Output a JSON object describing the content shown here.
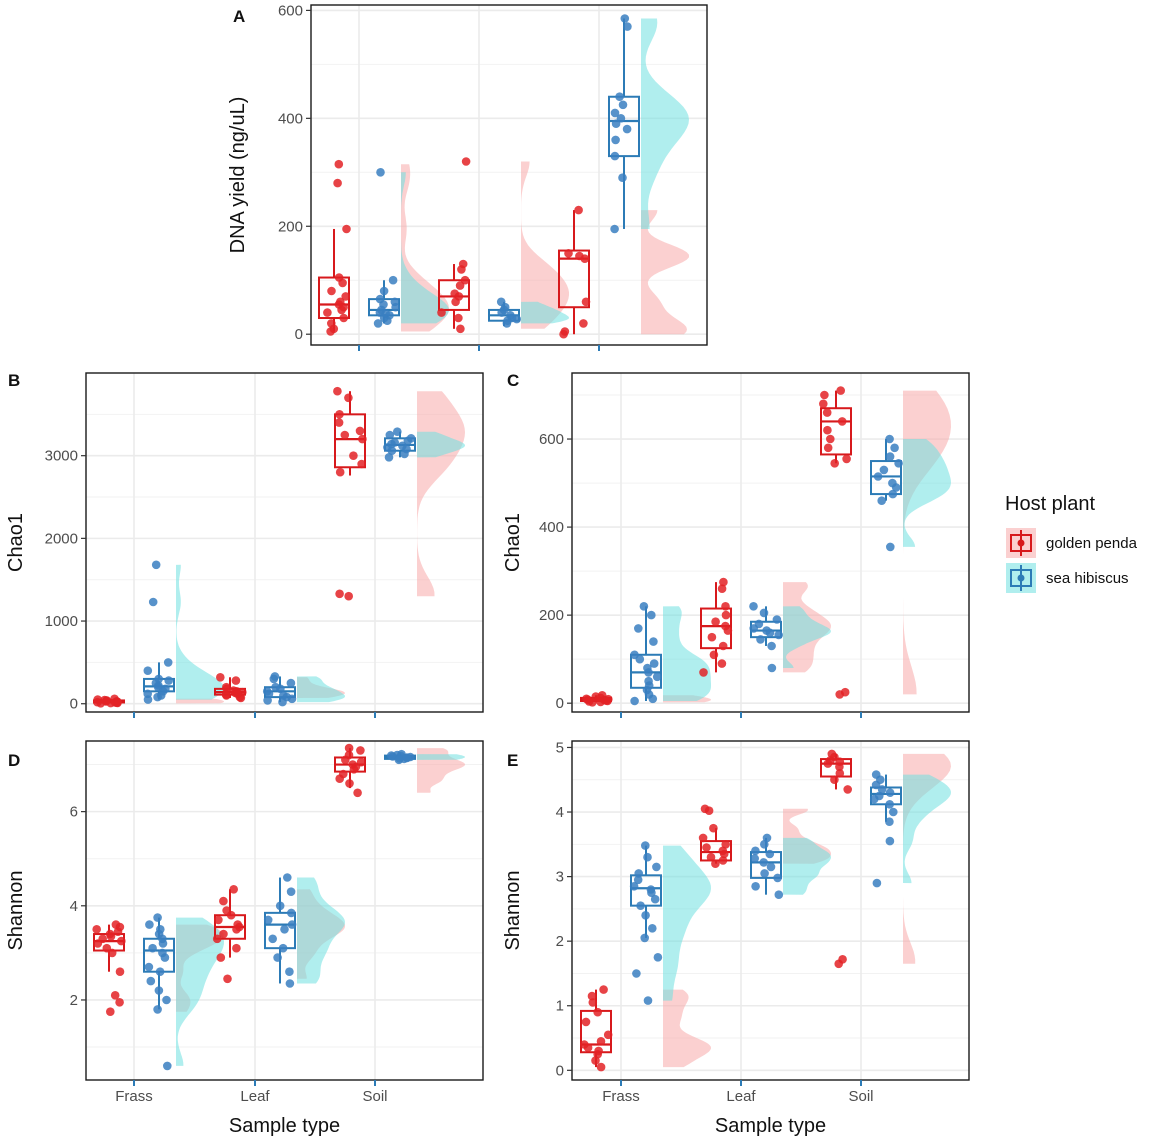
{
  "legend": {
    "title": "Host plant",
    "entries": [
      {
        "label": "golden penda",
        "color": "#d7191c",
        "fill": "#f8a9a9"
      },
      {
        "label": "sea hibiscus",
        "color": "#2c7bb6",
        "fill": "#6fe0e0"
      }
    ]
  },
  "chart_data": [
    {
      "panel": "A",
      "type": "box+jitter+half-violin",
      "ylabel": "DNA yield (ng/uL)",
      "xlabel": "",
      "categories": [
        "Frass",
        "Leaf",
        "Soil"
      ],
      "show_x_tick_labels": false,
      "ylim": [
        -20,
        610
      ],
      "yticks": [
        0,
        200,
        400,
        600
      ],
      "series": [
        {
          "name": "golden penda",
          "boxes": [
            {
              "category": "Frass",
              "min": 5,
              "q1": 30,
              "median": 55,
              "q3": 105,
              "max": 195,
              "points": [
                315,
                280,
                195,
                105,
                95,
                80,
                70,
                60,
                55,
                50,
                45,
                40,
                30,
                20,
                10,
                5
              ]
            },
            {
              "category": "Leaf",
              "min": 10,
              "q1": 45,
              "median": 70,
              "q3": 100,
              "max": 130,
              "points": [
                320,
                130,
                120,
                100,
                90,
                75,
                70,
                60,
                40,
                30,
                10
              ]
            },
            {
              "category": "Soil",
              "min": 0,
              "q1": 50,
              "median": 140,
              "q3": 155,
              "max": 230,
              "points": [
                230,
                150,
                145,
                140,
                60,
                20,
                5,
                0
              ]
            }
          ]
        },
        {
          "name": "sea hibiscus",
          "boxes": [
            {
              "category": "Frass",
              "min": 20,
              "q1": 35,
              "median": 45,
              "q3": 65,
              "max": 100,
              "points": [
                300,
                100,
                80,
                65,
                60,
                55,
                50,
                45,
                40,
                38,
                35,
                30,
                25,
                20
              ]
            },
            {
              "category": "Leaf",
              "min": 15,
              "q1": 25,
              "median": 35,
              "q3": 45,
              "max": 60,
              "points": [
                60,
                50,
                45,
                40,
                35,
                30,
                28,
                25,
                20
              ]
            },
            {
              "category": "Soil",
              "min": 195,
              "q1": 330,
              "median": 395,
              "q3": 440,
              "max": 585,
              "points": [
                585,
                570,
                440,
                425,
                410,
                400,
                390,
                380,
                360,
                330,
                290,
                195
              ]
            }
          ]
        }
      ]
    },
    {
      "panel": "B",
      "type": "box+jitter+half-violin",
      "ylabel": "Chao1",
      "xlabel": "",
      "categories": [
        "Frass",
        "Leaf",
        "Soil"
      ],
      "show_x_tick_labels": false,
      "ylim": [
        -100,
        4000
      ],
      "yticks": [
        0,
        1000,
        2000,
        3000
      ],
      "series": [
        {
          "name": "golden penda",
          "boxes": [
            {
              "category": "Frass",
              "min": 5,
              "q1": 15,
              "median": 25,
              "q3": 40,
              "max": 60,
              "points": [
                60,
                50,
                45,
                40,
                35,
                30,
                28,
                25,
                20,
                18,
                15,
                12,
                10,
                8,
                5
              ]
            },
            {
              "category": "Leaf",
              "min": 70,
              "q1": 110,
              "median": 140,
              "q3": 180,
              "max": 320,
              "points": [
                320,
                280,
                200,
                180,
                160,
                150,
                140,
                130,
                120,
                110,
                100,
                80,
                70
              ]
            },
            {
              "category": "Soil",
              "min": 2760,
              "q1": 2860,
              "median": 3200,
              "q3": 3500,
              "max": 3780,
              "points": [
                3780,
                3700,
                3500,
                3400,
                3300,
                3250,
                3200,
                3000,
                2900,
                2800,
                1330,
                1300
              ]
            }
          ]
        },
        {
          "name": "sea hibiscus",
          "boxes": [
            {
              "category": "Frass",
              "min": 50,
              "q1": 150,
              "median": 210,
              "q3": 300,
              "max": 500,
              "points": [
                1680,
                1230,
                500,
                400,
                300,
                280,
                250,
                220,
                200,
                180,
                150,
                120,
                100,
                80,
                50
              ]
            },
            {
              "category": "Leaf",
              "min": 20,
              "q1": 80,
              "median": 150,
              "q3": 200,
              "max": 330,
              "points": [
                330,
                300,
                250,
                200,
                180,
                150,
                120,
                100,
                80,
                60,
                40,
                20
              ]
            },
            {
              "category": "Soil",
              "min": 2980,
              "q1": 3060,
              "median": 3130,
              "q3": 3210,
              "max": 3290,
              "points": [
                3290,
                3250,
                3210,
                3180,
                3160,
                3140,
                3120,
                3100,
                3080,
                3060,
                3020,
                2980
              ]
            }
          ]
        }
      ]
    },
    {
      "panel": "C",
      "type": "box+jitter+half-violin",
      "ylabel": "Chao1",
      "xlabel": "",
      "categories": [
        "Frass",
        "Leaf",
        "Soil"
      ],
      "show_x_tick_labels": false,
      "ylim": [
        -20,
        750
      ],
      "yticks": [
        0,
        200,
        400,
        600
      ],
      "series": [
        {
          "name": "golden penda",
          "boxes": [
            {
              "category": "Frass",
              "min": 2,
              "q1": 5,
              "median": 8,
              "q3": 12,
              "max": 18,
              "points": [
                18,
                15,
                12,
                10,
                9,
                8,
                7,
                6,
                5,
                4,
                3,
                2
              ]
            },
            {
              "category": "Leaf",
              "min": 70,
              "q1": 125,
              "median": 175,
              "q3": 215,
              "max": 275,
              "points": [
                275,
                260,
                220,
                200,
                185,
                175,
                165,
                150,
                130,
                110,
                90,
                70
              ]
            },
            {
              "category": "Soil",
              "min": 545,
              "q1": 565,
              "median": 640,
              "q3": 670,
              "max": 710,
              "points": [
                710,
                700,
                680,
                660,
                640,
                620,
                600,
                580,
                555,
                545,
                25,
                20
              ]
            }
          ]
        },
        {
          "name": "sea hibiscus",
          "boxes": [
            {
              "category": "Frass",
              "min": 5,
              "q1": 35,
              "median": 70,
              "q3": 110,
              "max": 220,
              "points": [
                220,
                200,
                170,
                140,
                110,
                100,
                90,
                80,
                70,
                60,
                50,
                40,
                30,
                20,
                10,
                5
              ]
            },
            {
              "category": "Leaf",
              "min": 130,
              "q1": 150,
              "median": 165,
              "q3": 185,
              "max": 220,
              "points": [
                220,
                205,
                190,
                180,
                170,
                165,
                160,
                155,
                145,
                130,
                80
              ]
            },
            {
              "category": "Soil",
              "min": 460,
              "q1": 475,
              "median": 515,
              "q3": 550,
              "max": 600,
              "points": [
                600,
                580,
                560,
                545,
                530,
                515,
                500,
                490,
                475,
                460,
                355
              ]
            }
          ]
        }
      ]
    },
    {
      "panel": "D",
      "type": "box+jitter+half-violin",
      "ylabel": "Shannon",
      "xlabel": "Sample type",
      "categories": [
        "Frass",
        "Leaf",
        "Soil"
      ],
      "show_x_tick_labels": true,
      "ylim": [
        0.3,
        7.5
      ],
      "yticks": [
        2,
        4,
        6
      ],
      "series": [
        {
          "name": "golden penda",
          "boxes": [
            {
              "category": "Frass",
              "min": 2.6,
              "q1": 3.05,
              "median": 3.25,
              "q3": 3.4,
              "max": 3.6,
              "points": [
                3.6,
                3.55,
                3.5,
                3.45,
                3.4,
                3.35,
                3.3,
                3.25,
                3.2,
                3.1,
                3.0,
                2.6,
                2.1,
                1.95,
                1.75
              ]
            },
            {
              "category": "Leaf",
              "min": 2.9,
              "q1": 3.3,
              "median": 3.55,
              "q3": 3.8,
              "max": 4.35,
              "points": [
                4.35,
                4.1,
                3.9,
                3.8,
                3.7,
                3.6,
                3.55,
                3.5,
                3.4,
                3.3,
                3.1,
                2.9,
                2.45
              ]
            },
            {
              "category": "Soil",
              "min": 6.5,
              "q1": 6.85,
              "median": 7.0,
              "q3": 7.15,
              "max": 7.35,
              "points": [
                7.35,
                7.3,
                7.2,
                7.1,
                7.05,
                7.0,
                6.95,
                6.9,
                6.8,
                6.7,
                6.6,
                6.4
              ]
            }
          ]
        },
        {
          "name": "sea hibiscus",
          "boxes": [
            {
              "category": "Frass",
              "min": 1.8,
              "q1": 2.6,
              "median": 3.05,
              "q3": 3.3,
              "max": 3.75,
              "points": [
                3.75,
                3.6,
                3.5,
                3.4,
                3.3,
                3.2,
                3.1,
                3.0,
                2.9,
                2.7,
                2.6,
                2.4,
                2.2,
                2.0,
                1.8,
                0.6
              ]
            },
            {
              "category": "Leaf",
              "min": 2.35,
              "q1": 3.1,
              "median": 3.6,
              "q3": 3.85,
              "max": 4.6,
              "points": [
                4.6,
                4.3,
                4.0,
                3.85,
                3.7,
                3.6,
                3.5,
                3.3,
                3.1,
                2.9,
                2.6,
                2.35
              ]
            },
            {
              "category": "Soil",
              "min": 7.1,
              "q1": 7.12,
              "median": 7.16,
              "q3": 7.19,
              "max": 7.22,
              "points": [
                7.22,
                7.2,
                7.19,
                7.18,
                7.17,
                7.16,
                7.15,
                7.14,
                7.13,
                7.12,
                7.1
              ]
            }
          ]
        }
      ]
    },
    {
      "panel": "E",
      "type": "box+jitter+half-violin",
      "ylabel": "Shannon",
      "xlabel": "Sample type",
      "categories": [
        "Frass",
        "Leaf",
        "Soil"
      ],
      "show_x_tick_labels": true,
      "ylim": [
        -0.15,
        5.1
      ],
      "yticks": [
        0,
        1,
        2,
        3,
        4,
        5
      ],
      "series": [
        {
          "name": "golden penda",
          "boxes": [
            {
              "category": "Frass",
              "min": 0.05,
              "q1": 0.28,
              "median": 0.4,
              "q3": 0.92,
              "max": 1.25,
              "points": [
                1.25,
                1.15,
                1.05,
                0.9,
                0.75,
                0.55,
                0.45,
                0.4,
                0.35,
                0.3,
                0.25,
                0.15,
                0.05
              ]
            },
            {
              "category": "Leaf",
              "min": 3.2,
              "q1": 3.25,
              "median": 3.38,
              "q3": 3.55,
              "max": 3.75,
              "points": [
                4.05,
                4.02,
                3.75,
                3.6,
                3.5,
                3.45,
                3.4,
                3.35,
                3.3,
                3.25,
                3.2
              ]
            },
            {
              "category": "Soil",
              "min": 4.35,
              "q1": 4.55,
              "median": 4.75,
              "q3": 4.82,
              "max": 4.9,
              "points": [
                4.9,
                4.85,
                4.8,
                4.78,
                4.75,
                4.7,
                4.6,
                4.5,
                4.35,
                1.72,
                1.65
              ]
            }
          ]
        },
        {
          "name": "sea hibiscus",
          "boxes": [
            {
              "category": "Frass",
              "min": 2.05,
              "q1": 2.55,
              "median": 2.82,
              "q3": 3.02,
              "max": 3.48,
              "points": [
                3.48,
                3.3,
                3.15,
                3.05,
                2.95,
                2.85,
                2.8,
                2.75,
                2.65,
                2.55,
                2.4,
                2.2,
                2.05,
                1.75,
                1.5,
                1.08
              ]
            },
            {
              "category": "Leaf",
              "min": 2.72,
              "q1": 2.98,
              "median": 3.22,
              "q3": 3.38,
              "max": 3.6,
              "points": [
                3.6,
                3.5,
                3.4,
                3.35,
                3.28,
                3.22,
                3.15,
                3.05,
                2.98,
                2.85,
                2.72
              ]
            },
            {
              "category": "Soil",
              "min": 3.85,
              "q1": 4.12,
              "median": 4.28,
              "q3": 4.38,
              "max": 4.58,
              "points": [
                4.58,
                4.5,
                4.42,
                4.35,
                4.3,
                4.25,
                4.2,
                4.12,
                4.0,
                3.85,
                3.55,
                2.9
              ]
            }
          ]
        }
      ]
    }
  ]
}
